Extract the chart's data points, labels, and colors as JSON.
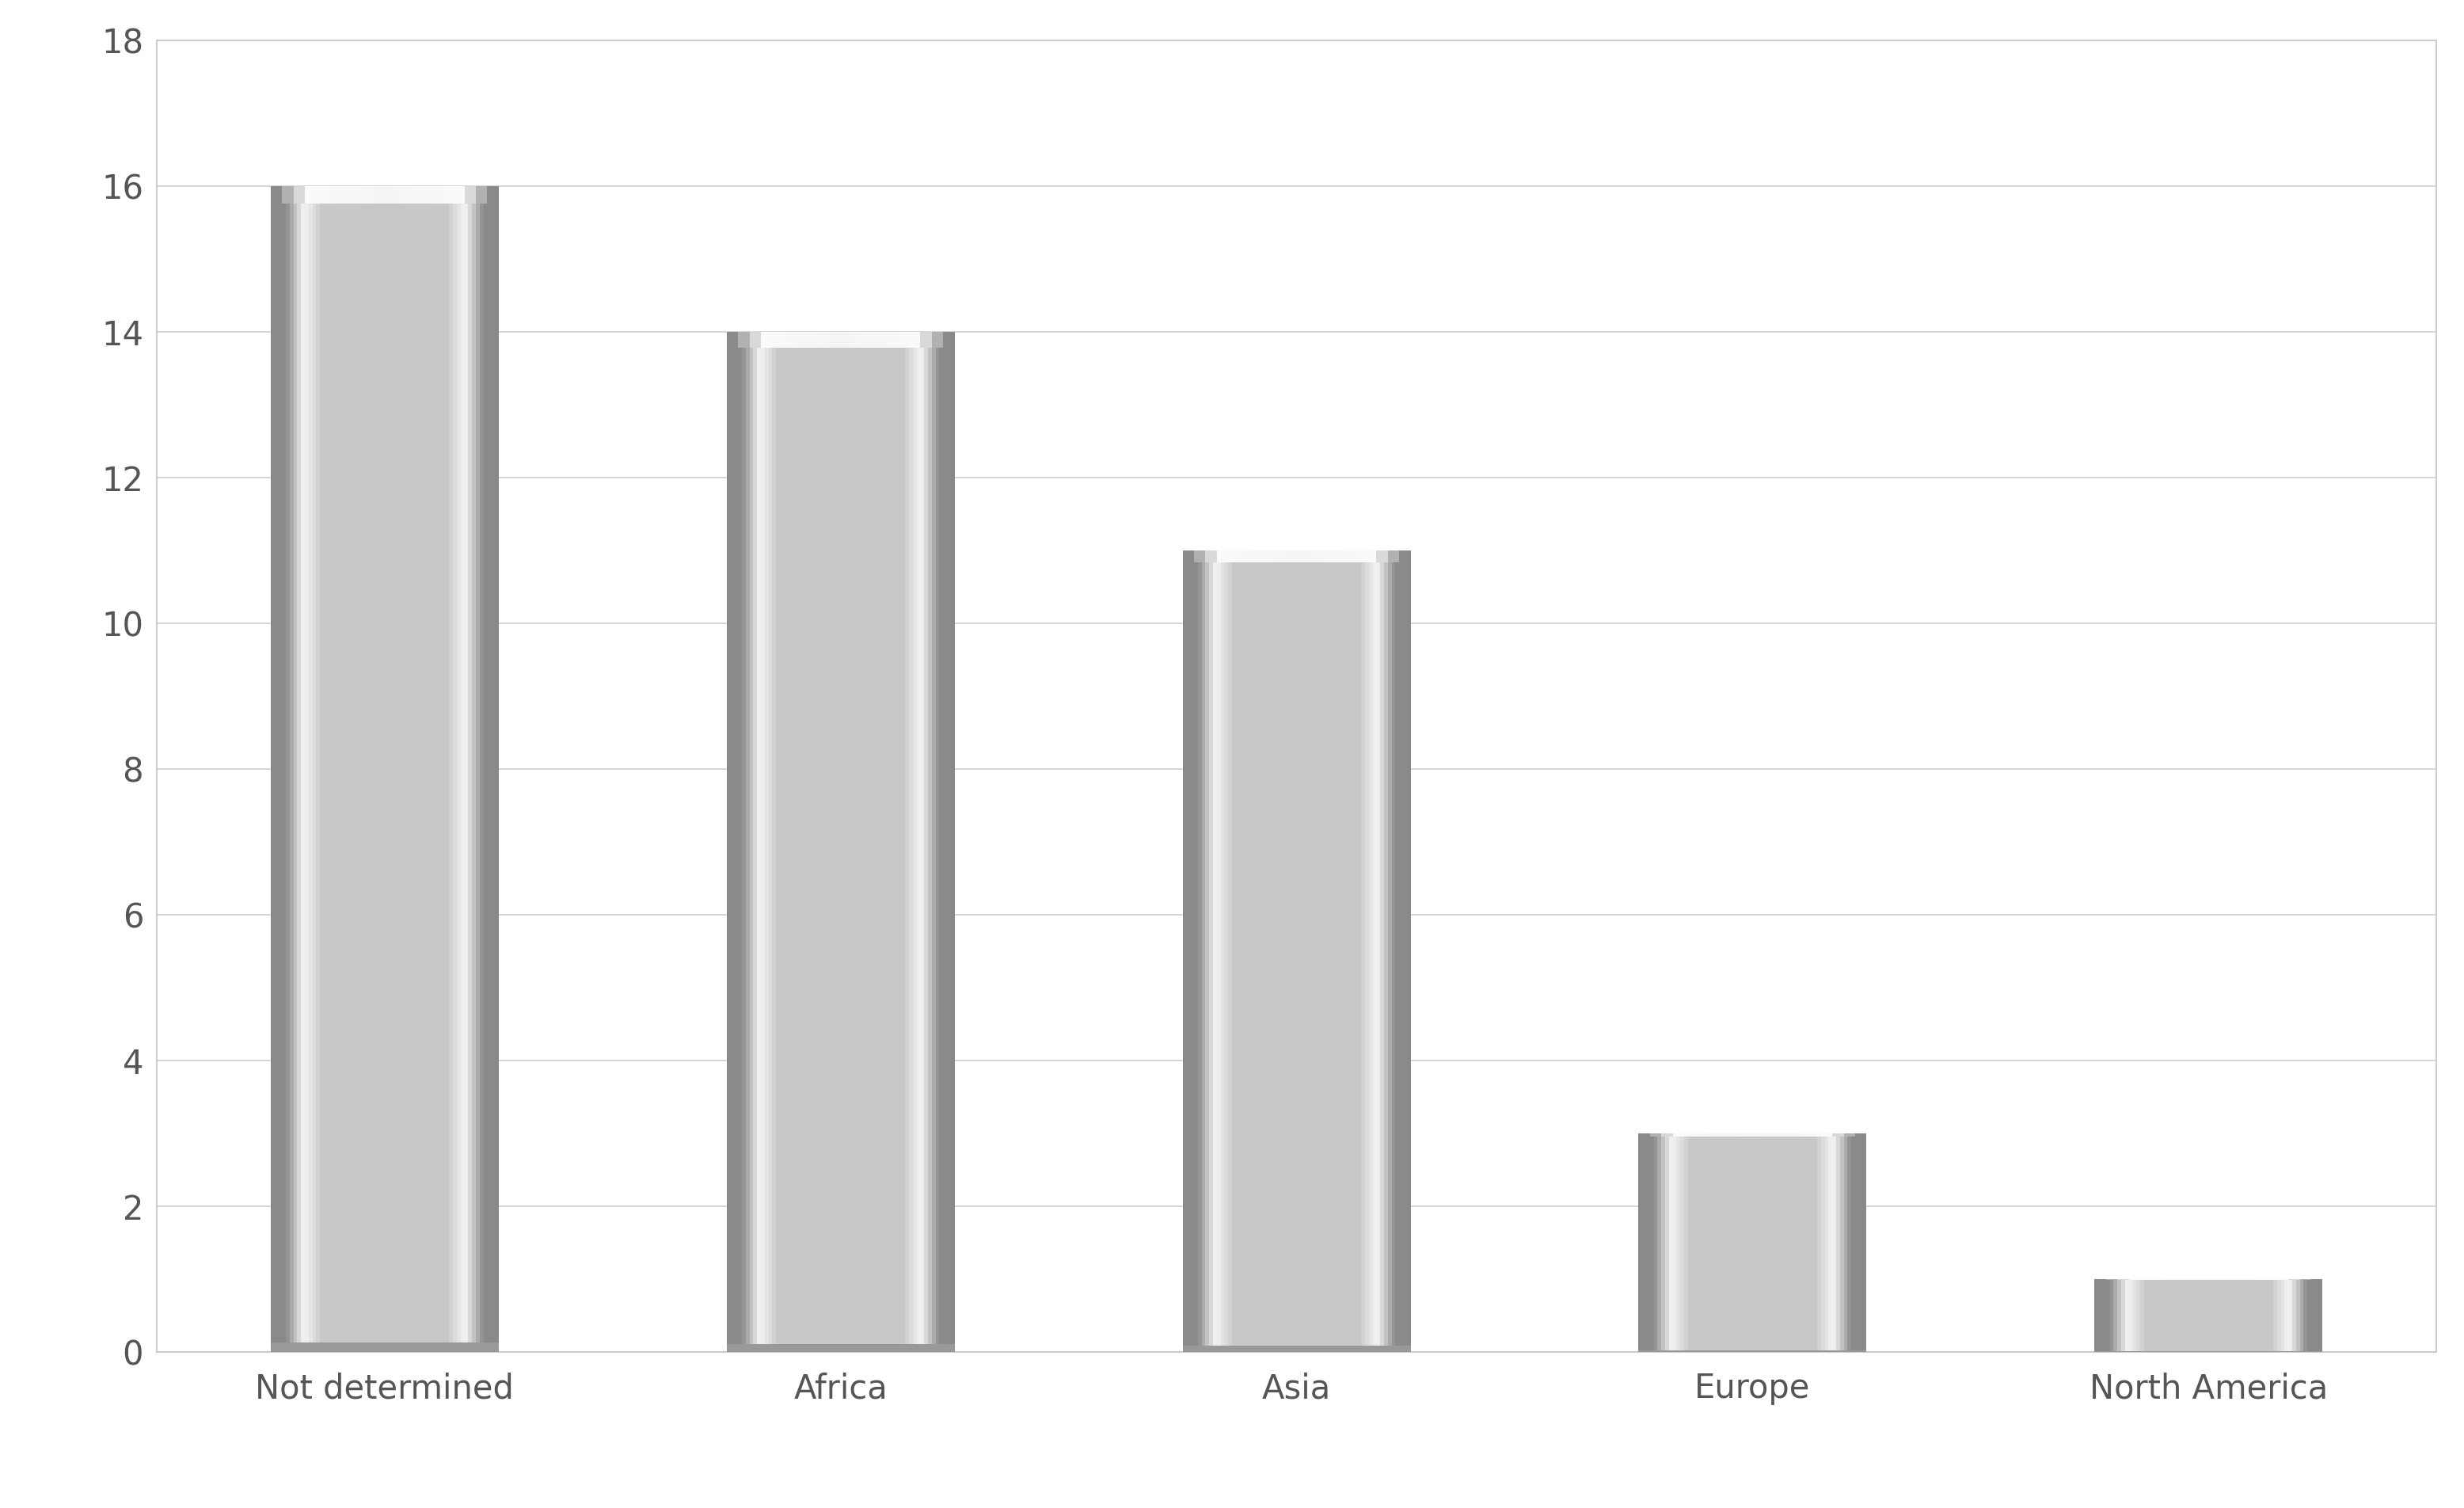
{
  "categories": [
    "Not determined",
    "Africa",
    "Asia",
    "Europe",
    "North America"
  ],
  "values": [
    16,
    14,
    11,
    3,
    1
  ],
  "background_color": "#ffffff",
  "plot_bg_color": "#ffffff",
  "grid_color": "#d0d0d0",
  "ylim": [
    0,
    18
  ],
  "yticks": [
    0,
    2,
    4,
    6,
    8,
    10,
    12,
    14,
    16,
    18
  ],
  "tick_fontsize": 30,
  "label_fontsize": 30,
  "bar_width": 0.5,
  "bar_center_color": "#c8c8c8",
  "bar_edge_dark": "#8a8a8a",
  "bar_edge_light": "#f5f5f5",
  "bar_top_highlight": "#f0f0f0",
  "bar_bottom_shadow": "#909090",
  "n_strips": 60
}
